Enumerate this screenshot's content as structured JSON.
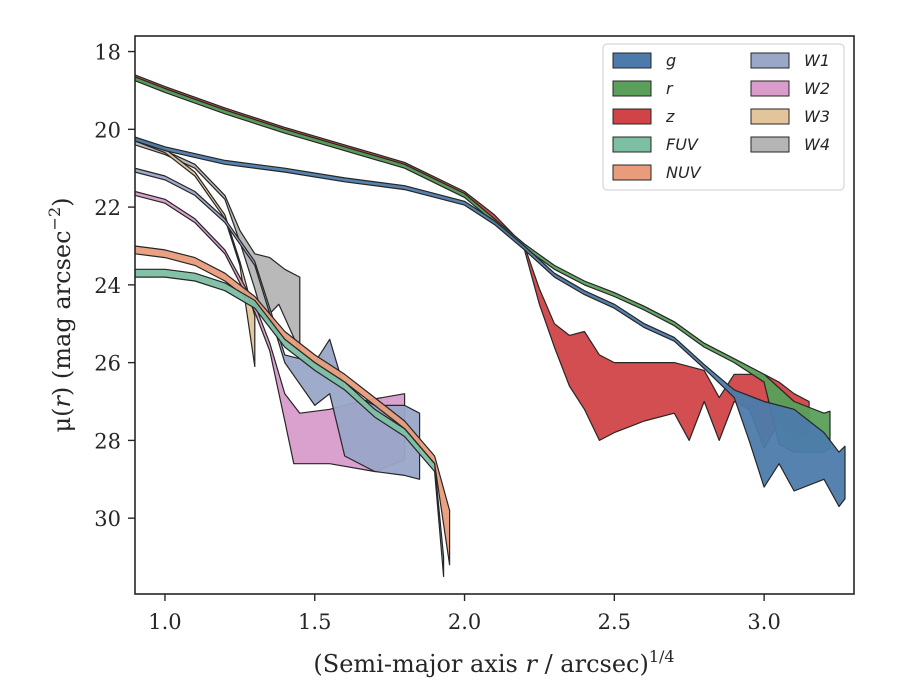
{
  "chart_data": {
    "type": "area",
    "xlabel_main": "(Semi-major axis ",
    "xlabel_var": "r",
    "xlabel_rest": " / arcsec)",
    "xlabel_sup": "1/4",
    "ylabel_main": "μ(",
    "ylabel_var": "r",
    "ylabel_rest": ") (mag arcsec",
    "ylabel_sup": "−2",
    "ylabel_end": ")",
    "xlim": [
      0.9,
      3.3
    ],
    "ylim": [
      31.95,
      17.6
    ],
    "y_inverted": true,
    "xticks": [
      1.0,
      1.5,
      2.0,
      2.5,
      3.0
    ],
    "xtick_labels": [
      "1.0",
      "1.5",
      "2.0",
      "2.5",
      "3.0"
    ],
    "yticks": [
      18,
      20,
      22,
      24,
      26,
      28,
      30
    ],
    "ytick_labels": [
      "18",
      "20",
      "22",
      "24",
      "26",
      "28",
      "30"
    ],
    "grid": false,
    "legend_position": "top-right",
    "legend_columns": 2,
    "series": [
      {
        "name": "g",
        "color": "#4c7bab",
        "upper": [
          [
            0.9,
            20.2
          ],
          [
            1.0,
            20.45
          ],
          [
            1.2,
            20.8
          ],
          [
            1.4,
            21.0
          ],
          [
            1.6,
            21.25
          ],
          [
            1.8,
            21.45
          ],
          [
            2.0,
            21.85
          ],
          [
            2.1,
            22.35
          ],
          [
            2.2,
            23.0
          ],
          [
            2.3,
            23.7
          ],
          [
            2.4,
            24.15
          ],
          [
            2.5,
            24.5
          ],
          [
            2.6,
            25.0
          ],
          [
            2.7,
            25.35
          ],
          [
            2.8,
            26.05
          ],
          [
            2.9,
            26.7
          ],
          [
            3.0,
            27.0
          ],
          [
            3.1,
            27.2
          ],
          [
            3.2,
            27.8
          ],
          [
            3.25,
            28.3
          ],
          [
            3.27,
            28.15
          ]
        ],
        "lower": [
          [
            0.9,
            20.3
          ],
          [
            1.0,
            20.55
          ],
          [
            1.2,
            20.9
          ],
          [
            1.4,
            21.1
          ],
          [
            1.6,
            21.35
          ],
          [
            1.8,
            21.55
          ],
          [
            2.0,
            21.95
          ],
          [
            2.1,
            22.45
          ],
          [
            2.2,
            23.1
          ],
          [
            2.3,
            23.8
          ],
          [
            2.4,
            24.25
          ],
          [
            2.5,
            24.6
          ],
          [
            2.6,
            25.1
          ],
          [
            2.7,
            25.45
          ],
          [
            2.8,
            26.15
          ],
          [
            2.9,
            26.9
          ],
          [
            2.95,
            28.0
          ],
          [
            3.0,
            29.2
          ],
          [
            3.05,
            28.6
          ],
          [
            3.1,
            29.3
          ],
          [
            3.2,
            29.0
          ],
          [
            3.25,
            29.7
          ],
          [
            3.27,
            29.5
          ]
        ]
      },
      {
        "name": "r",
        "color": "#5aa05a",
        "upper": [
          [
            0.9,
            18.65
          ],
          [
            1.0,
            18.95
          ],
          [
            1.2,
            19.5
          ],
          [
            1.4,
            20.0
          ],
          [
            1.6,
            20.45
          ],
          [
            1.8,
            20.9
          ],
          [
            2.0,
            21.65
          ],
          [
            2.1,
            22.3
          ],
          [
            2.2,
            22.95
          ],
          [
            2.3,
            23.5
          ],
          [
            2.4,
            23.9
          ],
          [
            2.5,
            24.2
          ],
          [
            2.6,
            24.55
          ],
          [
            2.7,
            24.95
          ],
          [
            2.8,
            25.5
          ],
          [
            2.9,
            25.9
          ],
          [
            3.0,
            26.3
          ],
          [
            3.1,
            27.0
          ],
          [
            3.2,
            27.3
          ],
          [
            3.22,
            27.25
          ]
        ],
        "lower": [
          [
            0.9,
            18.75
          ],
          [
            1.0,
            19.05
          ],
          [
            1.2,
            19.6
          ],
          [
            1.4,
            20.1
          ],
          [
            1.6,
            20.55
          ],
          [
            1.8,
            21.0
          ],
          [
            2.0,
            21.75
          ],
          [
            2.1,
            22.4
          ],
          [
            2.2,
            23.05
          ],
          [
            2.3,
            23.6
          ],
          [
            2.4,
            24.0
          ],
          [
            2.5,
            24.3
          ],
          [
            2.6,
            24.65
          ],
          [
            2.7,
            25.05
          ],
          [
            2.8,
            25.6
          ],
          [
            2.9,
            26.0
          ],
          [
            3.0,
            26.5
          ],
          [
            3.05,
            28.1
          ],
          [
            3.1,
            28.3
          ],
          [
            3.2,
            28.3
          ],
          [
            3.22,
            28.2
          ]
        ]
      },
      {
        "name": "z",
        "color": "#d04447",
        "upper": [
          [
            0.9,
            18.6
          ],
          [
            1.0,
            18.9
          ],
          [
            1.2,
            19.45
          ],
          [
            1.4,
            19.95
          ],
          [
            1.6,
            20.4
          ],
          [
            1.8,
            20.85
          ],
          [
            2.0,
            21.6
          ],
          [
            2.1,
            22.2
          ],
          [
            2.2,
            23.0
          ],
          [
            2.25,
            24.1
          ],
          [
            2.3,
            25.0
          ],
          [
            2.35,
            25.3
          ],
          [
            2.4,
            25.2
          ],
          [
            2.45,
            25.8
          ],
          [
            2.5,
            26.0
          ],
          [
            2.6,
            26.0
          ],
          [
            2.7,
            26.0
          ],
          [
            2.8,
            26.2
          ],
          [
            2.85,
            26.9
          ],
          [
            2.9,
            26.3
          ],
          [
            2.95,
            26.3
          ],
          [
            3.0,
            26.3
          ],
          [
            3.05,
            26.5
          ],
          [
            3.1,
            26.8
          ],
          [
            3.15,
            27.0
          ]
        ],
        "lower": [
          [
            0.9,
            18.7
          ],
          [
            1.0,
            19.0
          ],
          [
            1.2,
            19.55
          ],
          [
            1.4,
            20.05
          ],
          [
            1.6,
            20.5
          ],
          [
            1.8,
            20.95
          ],
          [
            2.0,
            21.7
          ],
          [
            2.1,
            22.3
          ],
          [
            2.2,
            23.1
          ],
          [
            2.25,
            24.5
          ],
          [
            2.3,
            25.6
          ],
          [
            2.35,
            26.6
          ],
          [
            2.4,
            27.2
          ],
          [
            2.45,
            28.0
          ],
          [
            2.5,
            27.8
          ],
          [
            2.6,
            27.5
          ],
          [
            2.7,
            27.3
          ],
          [
            2.75,
            28.0
          ],
          [
            2.8,
            27.0
          ],
          [
            2.85,
            28.0
          ],
          [
            2.9,
            27.0
          ],
          [
            2.95,
            27.2
          ],
          [
            3.0,
            28.2
          ],
          [
            3.05,
            27.5
          ],
          [
            3.1,
            28.0
          ],
          [
            3.15,
            27.8
          ]
        ]
      },
      {
        "name": "FUV",
        "color": "#7cbfa3",
        "upper": [
          [
            0.9,
            23.6
          ],
          [
            1.0,
            23.6
          ],
          [
            1.1,
            23.7
          ],
          [
            1.2,
            23.95
          ],
          [
            1.3,
            24.4
          ],
          [
            1.4,
            25.4
          ],
          [
            1.5,
            26.0
          ],
          [
            1.6,
            26.5
          ],
          [
            1.7,
            27.2
          ],
          [
            1.8,
            27.7
          ],
          [
            1.9,
            28.6
          ],
          [
            1.93,
            31.0
          ]
        ],
        "lower": [
          [
            0.9,
            23.8
          ],
          [
            1.0,
            23.8
          ],
          [
            1.1,
            23.9
          ],
          [
            1.2,
            24.15
          ],
          [
            1.3,
            24.6
          ],
          [
            1.4,
            25.6
          ],
          [
            1.5,
            26.2
          ],
          [
            1.6,
            26.7
          ],
          [
            1.7,
            27.4
          ],
          [
            1.8,
            27.9
          ],
          [
            1.9,
            28.8
          ],
          [
            1.93,
            31.5
          ]
        ]
      },
      {
        "name": "NUV",
        "color": "#e99c7b",
        "upper": [
          [
            0.9,
            23.0
          ],
          [
            1.0,
            23.1
          ],
          [
            1.1,
            23.3
          ],
          [
            1.2,
            23.7
          ],
          [
            1.3,
            24.3
          ],
          [
            1.4,
            25.2
          ],
          [
            1.5,
            25.8
          ],
          [
            1.6,
            26.3
          ],
          [
            1.7,
            26.9
          ],
          [
            1.8,
            27.5
          ],
          [
            1.9,
            28.4
          ],
          [
            1.95,
            29.8
          ]
        ],
        "lower": [
          [
            0.9,
            23.2
          ],
          [
            1.0,
            23.3
          ],
          [
            1.1,
            23.5
          ],
          [
            1.2,
            23.9
          ],
          [
            1.3,
            24.5
          ],
          [
            1.4,
            25.4
          ],
          [
            1.5,
            26.0
          ],
          [
            1.6,
            26.5
          ],
          [
            1.7,
            27.1
          ],
          [
            1.8,
            27.7
          ],
          [
            1.9,
            28.6
          ],
          [
            1.95,
            31.2
          ]
        ]
      },
      {
        "name": "W1",
        "color": "#9aa7c7",
        "upper": [
          [
            0.9,
            21.0
          ],
          [
            1.0,
            21.2
          ],
          [
            1.1,
            21.6
          ],
          [
            1.2,
            22.3
          ],
          [
            1.3,
            23.4
          ],
          [
            1.4,
            25.8
          ],
          [
            1.5,
            26.0
          ],
          [
            1.55,
            25.4
          ],
          [
            1.6,
            26.7
          ],
          [
            1.7,
            27.1
          ],
          [
            1.8,
            27.1
          ],
          [
            1.85,
            27.3
          ]
        ],
        "lower": [
          [
            0.9,
            21.1
          ],
          [
            1.0,
            21.3
          ],
          [
            1.1,
            21.7
          ],
          [
            1.2,
            22.4
          ],
          [
            1.3,
            23.5
          ],
          [
            1.4,
            26.0
          ],
          [
            1.5,
            27.1
          ],
          [
            1.55,
            26.8
          ],
          [
            1.6,
            28.4
          ],
          [
            1.7,
            28.8
          ],
          [
            1.8,
            28.9
          ],
          [
            1.85,
            29.0
          ]
        ]
      },
      {
        "name": "W2",
        "color": "#d99ccb",
        "upper": [
          [
            0.9,
            21.6
          ],
          [
            1.0,
            21.8
          ],
          [
            1.1,
            22.3
          ],
          [
            1.2,
            23.1
          ],
          [
            1.3,
            24.5
          ],
          [
            1.35,
            25.5
          ],
          [
            1.4,
            26.8
          ],
          [
            1.45,
            27.3
          ],
          [
            1.55,
            27.2
          ],
          [
            1.65,
            27.0
          ],
          [
            1.8,
            26.8
          ]
        ],
        "lower": [
          [
            0.9,
            21.7
          ],
          [
            1.0,
            21.9
          ],
          [
            1.1,
            22.4
          ],
          [
            1.2,
            23.2
          ],
          [
            1.3,
            24.7
          ],
          [
            1.35,
            25.7
          ],
          [
            1.4,
            27.5
          ],
          [
            1.43,
            28.6
          ],
          [
            1.55,
            28.6
          ],
          [
            1.7,
            28.8
          ],
          [
            1.8,
            28.5
          ]
        ]
      },
      {
        "name": "W3",
        "color": "#e2c59b",
        "upper": [
          [
            0.9,
            20.2
          ],
          [
            1.0,
            20.5
          ],
          [
            1.1,
            21.1
          ],
          [
            1.2,
            22.2
          ],
          [
            1.25,
            23.4
          ],
          [
            1.3,
            24.8
          ]
        ],
        "lower": [
          [
            0.9,
            20.3
          ],
          [
            1.0,
            20.6
          ],
          [
            1.1,
            21.2
          ],
          [
            1.2,
            22.3
          ],
          [
            1.25,
            23.5
          ],
          [
            1.3,
            26.1
          ]
        ]
      },
      {
        "name": "W4",
        "color": "#b5b5b5",
        "upper": [
          [
            0.9,
            20.3
          ],
          [
            1.0,
            20.55
          ],
          [
            1.1,
            20.9
          ],
          [
            1.2,
            21.7
          ],
          [
            1.25,
            22.6
          ],
          [
            1.3,
            23.2
          ],
          [
            1.35,
            23.3
          ],
          [
            1.4,
            23.6
          ],
          [
            1.45,
            23.8
          ]
        ],
        "lower": [
          [
            0.9,
            20.4
          ],
          [
            1.0,
            20.65
          ],
          [
            1.1,
            21.0
          ],
          [
            1.2,
            21.8
          ],
          [
            1.25,
            22.9
          ],
          [
            1.3,
            24.1
          ],
          [
            1.33,
            24.9
          ],
          [
            1.38,
            24.5
          ],
          [
            1.45,
            25.7
          ]
        ]
      }
    ]
  }
}
